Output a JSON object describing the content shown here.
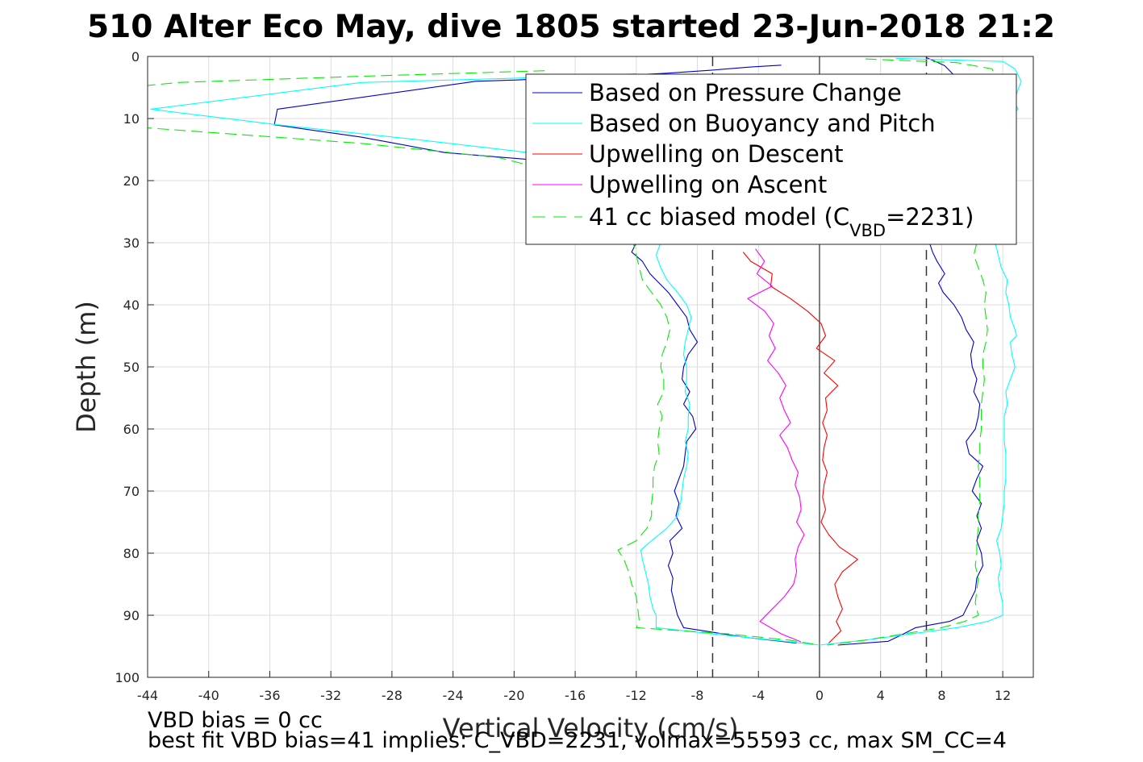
{
  "chart_data": {
    "type": "line",
    "title": "510 Alter Eco May, dive 1805 started 23-Jun-2018 21:2",
    "xlabel": "Vertical Velocity (cm/s)",
    "ylabel": "Depth (m)",
    "xlim": [
      -44,
      14
    ],
    "ylim": [
      0,
      100
    ],
    "y_reversed": true,
    "grid": true,
    "legend_location": "top-right",
    "xticks": [
      -44,
      -40,
      -36,
      -32,
      -28,
      -24,
      -20,
      -16,
      -12,
      -8,
      -4,
      0,
      4,
      8,
      12
    ],
    "yticks": [
      0,
      10,
      20,
      30,
      40,
      50,
      60,
      70,
      80,
      90,
      100
    ],
    "reference_lines": {
      "solid_x": [
        0
      ],
      "dashed_x": [
        -7,
        7
      ]
    },
    "series": [
      {
        "name": "Based on Pressure Change",
        "color": "#0000cc",
        "style": "solid",
        "branches": [
          {
            "depth": [
              1.4,
              1.7,
              2.2,
              2.7,
              3.2,
              3.8,
              4.0,
              8.5,
              11.0,
              13.0,
              15.5,
              16.8,
              20,
              25,
              30,
              31.5,
              33,
              35,
              36.5,
              38,
              40,
              42,
              44,
              46,
              48,
              50,
              52,
              54,
              56,
              58,
              60,
              62,
              64,
              66,
              68,
              70,
              72,
              74,
              76,
              78,
              80,
              82,
              84,
              86,
              88,
              90,
              92,
              93.5,
              94.5
            ],
            "velocity": [
              -2.5,
              -4.5,
              -7,
              -10,
              -14,
              -20,
              -22.5,
              -35.5,
              -35.7,
              -30,
              -24.5,
              -18,
              -14,
              -12.5,
              -12,
              -12.3,
              -11.6,
              -11.1,
              -10.5,
              -9.9,
              -9.3,
              -8.7,
              -8.5,
              -8.0,
              -8.6,
              -8.9,
              -9.0,
              -8.5,
              -8.9,
              -8.3,
              -8.1,
              -8.7,
              -8.8,
              -8.9,
              -9.2,
              -9.5,
              -9.2,
              -9.4,
              -9.0,
              -9.8,
              -9.6,
              -9.9,
              -9.6,
              -9.7,
              -9.5,
              -9.3,
              -8.9,
              -5,
              -1.5
            ]
          },
          {
            "depth": [
              0.2,
              0.8,
              1.5,
              3,
              6,
              10,
              15,
              20,
              25,
              30,
              31.5,
              33,
              35,
              36.5,
              38,
              40,
              42,
              44,
              46,
              48,
              50,
              52,
              54,
              56,
              58,
              60,
              62,
              64,
              66,
              68,
              70,
              72,
              74,
              76,
              78,
              80,
              82,
              84,
              86,
              88,
              90,
              91,
              92,
              93,
              94.2,
              94.8
            ],
            "velocity": [
              7,
              7.6,
              8.2,
              8.8,
              9.4,
              9.2,
              8.9,
              8.5,
              7.9,
              7.2,
              7.4,
              7.7,
              8.2,
              7.8,
              8.1,
              8.8,
              9.3,
              9.6,
              10.1,
              9.9,
              10.0,
              10.3,
              10.1,
              10.5,
              10.4,
              10.2,
              9.6,
              9.8,
              10.7,
              10.3,
              10.0,
              10.6,
              10.3,
              10.6,
              10.3,
              10.6,
              10.7,
              10.3,
              10.2,
              9.8,
              9.4,
              8.5,
              6.3,
              5.5,
              4.5,
              1.2
            ]
          }
        ]
      },
      {
        "name": "Based on Buoyancy and Pitch",
        "color": "#00ffff",
        "style": "solid",
        "branches": [
          {
            "depth": [
              2.8,
              3.5,
              4.2,
              8.5,
              11.0,
              13.5,
              15.5,
              16.5,
              20,
              25,
              30,
              32,
              34,
              36,
              38,
              40,
              42,
              44,
              46,
              48,
              50,
              52,
              54,
              56,
              58,
              60,
              62,
              64,
              66,
              68,
              70,
              72,
              74,
              76,
              78,
              79.5,
              81,
              83,
              85,
              87,
              89,
              90,
              92,
              93,
              94,
              94.8
            ],
            "velocity": [
              -12,
              -20,
              -30,
              -43.8,
              -35.5,
              -26,
              -19,
              -15,
              -13.5,
              -12,
              -10.4,
              -10.7,
              -10.4,
              -10.0,
              -9.3,
              -8.7,
              -8.4,
              -8.6,
              -8.8,
              -8.9,
              -8.7,
              -8.7,
              -8.8,
              -8.5,
              -8.6,
              -8.6,
              -8.8,
              -8.6,
              -8.7,
              -8.9,
              -9.0,
              -9.1,
              -9.3,
              -10.0,
              -11.0,
              -11.7,
              -11.6,
              -11.4,
              -11.2,
              -11.1,
              -10.9,
              -10.7,
              -10.7,
              -7,
              -3,
              0
            ]
          },
          {
            "depth": [
              0.3,
              0.8,
              2,
              4,
              6,
              7.5,
              8.5,
              9.5,
              10.5,
              12,
              14.5,
              20,
              25,
              30,
              32,
              34,
              36,
              38,
              40,
              42,
              44,
              45,
              46,
              48,
              50,
              52,
              54,
              56,
              58,
              60,
              62,
              64,
              66,
              68,
              70,
              72,
              74,
              76,
              78,
              80,
              82,
              84,
              86,
              88,
              90,
              91,
              92,
              93,
              94,
              94.8
            ],
            "velocity": [
              5,
              12,
              12.8,
              13.2,
              12.9,
              12.8,
              13.0,
              12.4,
              12.9,
              12.4,
              12.1,
              11.8,
              11.6,
              11.5,
              11.7,
              11.9,
              12.3,
              12.2,
              12.4,
              12.5,
              12.8,
              12.9,
              12.5,
              12.6,
              12.8,
              12.5,
              12.2,
              12.3,
              12.1,
              12.1,
              12.1,
              12.2,
              12.2,
              12.2,
              12.1,
              12.1,
              12.0,
              11.9,
              11.6,
              11.8,
              11.9,
              11.7,
              11.8,
              12.0,
              12.0,
              11.0,
              9.0,
              6.0,
              3.0,
              0
            ]
          }
        ]
      },
      {
        "name": "Upwelling on Descent",
        "color": "#ff0000",
        "style": "solid",
        "branches": [
          {
            "depth": [
              31.5,
              33,
              35,
              37,
              39,
              41,
              43,
              45,
              47,
              49,
              51,
              53,
              55,
              57,
              59,
              61,
              63,
              65,
              67,
              69,
              71,
              73,
              75,
              77,
              79,
              81,
              83,
              85,
              87,
              89,
              91,
              92.5,
              93.5,
              94.5
            ],
            "velocity": [
              -5.0,
              -4.5,
              -3.1,
              -3.2,
              -1.9,
              -0.8,
              0.1,
              0.4,
              -0.2,
              1.0,
              0.3,
              1.2,
              0.4,
              0.5,
              0.2,
              0.5,
              0.3,
              0.2,
              0.5,
              0.3,
              0.2,
              0.4,
              0.1,
              0.6,
              1.3,
              2.5,
              1.5,
              1.0,
              1.2,
              1.5,
              1.1,
              1.4,
              1.0,
              0.6
            ]
          }
        ]
      },
      {
        "name": "Upwelling on Ascent",
        "color": "#ff00ff",
        "style": "solid",
        "branches": [
          {
            "depth": [
              31,
              33,
              35,
              37,
              39,
              41,
              43,
              45,
              47,
              49,
              51,
              53,
              55,
              57,
              59,
              61,
              63,
              65,
              67,
              69,
              71,
              73,
              75,
              77,
              79,
              81,
              83,
              85,
              87,
              89,
              91,
              93,
              94.3
            ],
            "velocity": [
              -4.2,
              -3.6,
              -4.1,
              -3.1,
              -4.7,
              -3.6,
              -3.0,
              -3.3,
              -2.9,
              -3.4,
              -2.7,
              -2.2,
              -2.6,
              -2.3,
              -1.9,
              -2.6,
              -2.1,
              -1.8,
              -1.4,
              -1.6,
              -1.3,
              -1.2,
              -1.5,
              -1.0,
              -1.4,
              -1.6,
              -1.5,
              -1.7,
              -2.3,
              -3.1,
              -3.9,
              -2.5,
              -1.2
            ]
          }
        ]
      },
      {
        "name": "41 cc biased model (C_VBD=2231)",
        "color": "#00ee00",
        "style": "dashed",
        "branches": [
          {
            "depth": [
              2.3,
              3.2,
              4.2,
              8.5,
              11.5,
              14.0,
              16.3,
              20,
              25,
              30,
              32,
              34,
              36,
              38,
              40,
              42,
              44,
              46,
              48,
              50,
              52,
              54,
              56,
              58,
              60,
              62,
              64,
              66,
              68,
              70,
              72,
              74,
              76,
              78,
              79.5,
              81,
              83,
              85,
              87,
              89,
              91,
              92,
              93,
              94,
              94.8
            ],
            "velocity": [
              -18,
              -30,
              -42,
              -60,
              -44,
              -30,
              -21,
              -15,
              -13,
              -12.2,
              -12.0,
              -11.8,
              -11.6,
              -11.0,
              -10.4,
              -10.0,
              -9.8,
              -10.0,
              -10.3,
              -10.4,
              -10.2,
              -10.2,
              -10.6,
              -10.3,
              -10.5,
              -10.6,
              -10.5,
              -10.8,
              -10.9,
              -10.9,
              -11.0,
              -11.0,
              -11.3,
              -12.0,
              -13.2,
              -12.8,
              -12.5,
              -12.3,
              -12.0,
              -11.9,
              -11.8,
              -12.0,
              -6,
              -2,
              0
            ]
          },
          {
            "depth": [
              0.4,
              1.0,
              2,
              4,
              6,
              8,
              10,
              12,
              14,
              20,
              25,
              30,
              32,
              34,
              36,
              38,
              40,
              42,
              44,
              46,
              48,
              50,
              52,
              54,
              56,
              58,
              60,
              62,
              64,
              66,
              68,
              70,
              72,
              74,
              76,
              78,
              80,
              82,
              84,
              86,
              88,
              90,
              91,
              92,
              93,
              94,
              94.8
            ],
            "velocity": [
              3,
              9.0,
              11.3,
              11.6,
              11.8,
              11.9,
              11.8,
              11.6,
              11.5,
              11.1,
              10.7,
              10.3,
              10.1,
              10.4,
              10.7,
              10.9,
              10.8,
              10.9,
              11.0,
              10.9,
              10.7,
              10.7,
              10.8,
              10.7,
              10.6,
              10.6,
              10.6,
              10.5,
              10.5,
              10.4,
              10.5,
              10.5,
              10.5,
              10.4,
              10.4,
              10.3,
              10.3,
              10.2,
              10.4,
              10.3,
              10.2,
              10.4,
              9.5,
              8.0,
              5.5,
              3.0,
              0.5
            ]
          }
        ]
      }
    ]
  },
  "legend": {
    "entries": [
      {
        "text": "Based on Pressure Change"
      },
      {
        "text": "Based on Buoyancy and Pitch"
      },
      {
        "text": "Upwelling on Descent"
      },
      {
        "text": "Upwelling on Ascent"
      },
      {
        "text_prefix": "41 cc biased model (C",
        "text_sub": "VBD",
        "text_suffix": "=2231)"
      }
    ]
  },
  "notes": {
    "line1": "VBD bias = 0 cc",
    "line2": "best fit VBD bias=41 implies: C_VBD=2231, volmax=55593 cc, max SM_CC=4"
  }
}
